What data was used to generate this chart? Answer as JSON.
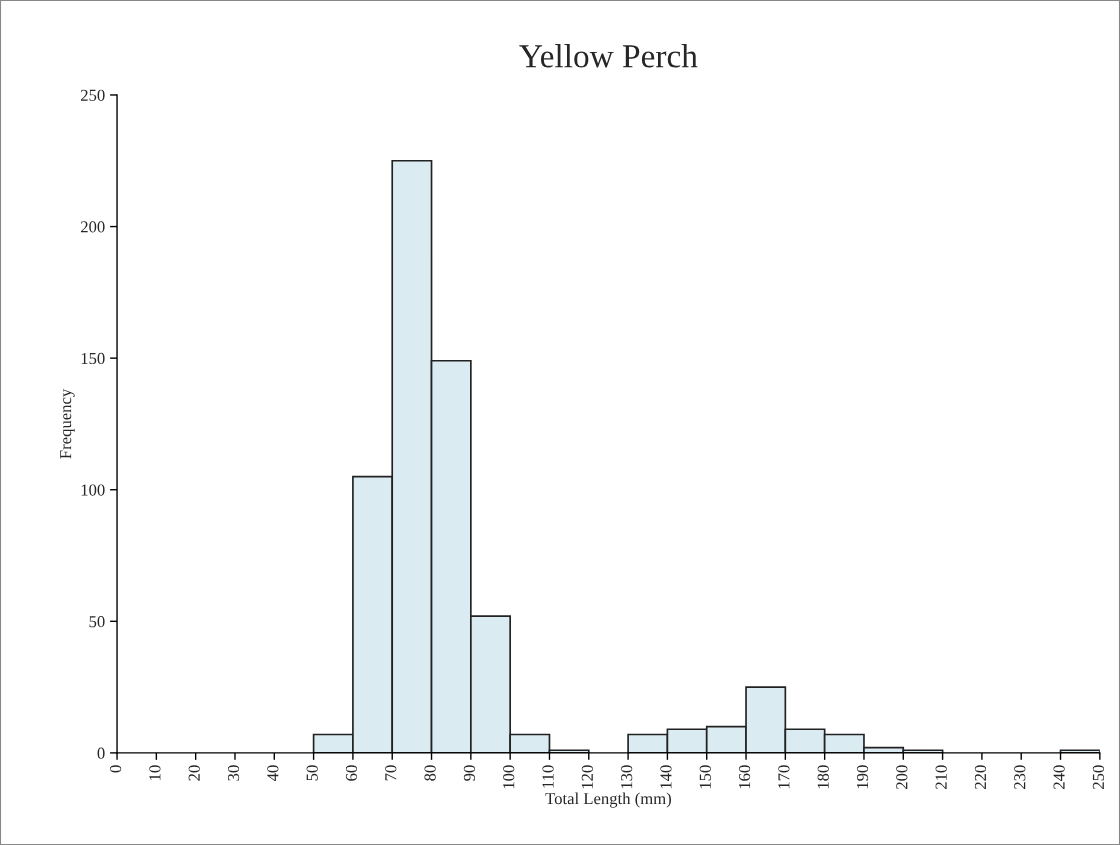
{
  "chart_data": {
    "type": "histogram",
    "title": "Yellow Perch",
    "xlabel": "Total Length (mm)",
    "ylabel": "Frequency",
    "bins": [
      0,
      10,
      20,
      30,
      40,
      50,
      60,
      70,
      80,
      90,
      100,
      110,
      120,
      130,
      140,
      150,
      160,
      170,
      180,
      190,
      200,
      210,
      220,
      230,
      240,
      250
    ],
    "values": [
      0,
      0,
      0,
      0,
      0,
      7,
      105,
      225,
      149,
      52,
      7,
      1,
      0,
      7,
      9,
      10,
      25,
      9,
      7,
      2,
      1,
      0,
      0,
      0,
      1
    ],
    "color": "#daebf1",
    "xlim": [
      0,
      250
    ],
    "xticks": [
      0,
      10,
      20,
      30,
      40,
      50,
      60,
      70,
      80,
      90,
      100,
      110,
      120,
      130,
      140,
      150,
      160,
      170,
      180,
      190,
      200,
      210,
      220,
      230,
      240,
      250
    ],
    "ylim": [
      0,
      250
    ],
    "yticks": [
      0,
      50,
      100,
      150,
      200,
      250
    ],
    "grid": false
  }
}
